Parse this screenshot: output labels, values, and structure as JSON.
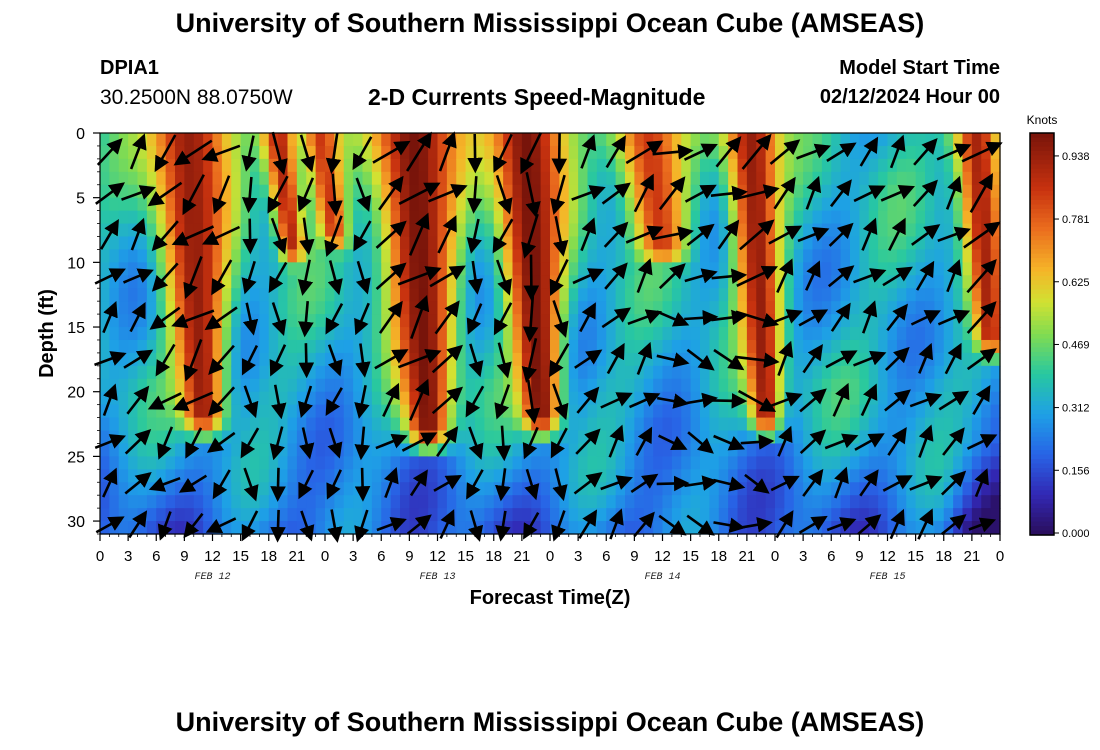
{
  "header": {
    "title": "University of Southern Mississippi Ocean Cube (AMSEAS)",
    "station_id": "DPIA1",
    "station_coords": "30.2500N  88.0750W",
    "plot_title": "2-D Currents Speed-Magnitude",
    "start_label": "Model Start Time",
    "start_value": "02/12/2024 Hour 00"
  },
  "footer": {
    "title": "University of Southern Mississippi Ocean Cube (AMSEAS)"
  },
  "chart_data": {
    "type": "heatmap",
    "title": "2-D Currents Speed-Magnitude",
    "xlabel": "Forecast Time(Z)",
    "ylabel": "Depth (ft)",
    "x_range_hours": [
      0,
      96
    ],
    "y_range_ft": [
      0,
      31
    ],
    "x_tick_labels": [
      "0",
      "3",
      "6",
      "9",
      "12",
      "15",
      "18",
      "21",
      "0",
      "3",
      "6",
      "9",
      "12",
      "15",
      "18",
      "21",
      "0",
      "3",
      "6",
      "9",
      "12",
      "15",
      "18",
      "21",
      "0",
      "3",
      "6",
      "9",
      "12",
      "15",
      "18",
      "21",
      "0"
    ],
    "y_ticks": [
      0,
      5,
      10,
      15,
      20,
      25,
      30
    ],
    "date_labels": [
      {
        "label": "FEB 12",
        "hour": 12
      },
      {
        "label": "FEB 13",
        "hour": 36
      },
      {
        "label": "FEB 14",
        "hour": 60
      },
      {
        "label": "FEB 15",
        "hour": 84
      }
    ],
    "colorbar": {
      "unit": "Knots",
      "min": 0.0,
      "max": 1.0,
      "tick_labels": [
        "0.938",
        "0.781",
        "0.625",
        "0.469",
        "0.312",
        "0.156",
        "0.000"
      ],
      "tick_values": [
        0.938,
        0.781,
        0.625,
        0.469,
        0.312,
        0.156,
        0.0
      ]
    },
    "speed_maxima": [
      {
        "center_hour": 9.5,
        "peak_knots": 0.95,
        "surface_width_h": 5.5,
        "bottom_depth_ft": 22
      },
      {
        "center_hour": 19,
        "peak_knots": 0.9,
        "surface_width_h": 2.2,
        "bottom_depth_ft": 9
      },
      {
        "center_hour": 23.5,
        "peak_knots": 0.85,
        "surface_width_h": 2.4,
        "bottom_depth_ft": 8
      },
      {
        "center_hour": 33.5,
        "peak_knots": 1.0,
        "surface_width_h": 6.0,
        "bottom_depth_ft": 23
      },
      {
        "center_hour": 45.5,
        "peak_knots": 1.0,
        "surface_width_h": 5.0,
        "bottom_depth_ft": 22
      },
      {
        "center_hour": 58.5,
        "peak_knots": 0.85,
        "surface_width_h": 5.0,
        "bottom_depth_ft": 9
      },
      {
        "center_hour": 69.5,
        "peak_knots": 0.95,
        "surface_width_h": 3.5,
        "bottom_depth_ft": 22
      },
      {
        "center_hour": 93.5,
        "peak_knots": 0.92,
        "surface_width_h": 3.0,
        "bottom_depth_ft": 16
      }
    ],
    "vector_direction_phases": [
      {
        "hours": [
          0,
          7
        ],
        "direction": "northeast / up-right"
      },
      {
        "hours": [
          7,
          16
        ],
        "direction": "southwest / down-left"
      },
      {
        "hours": [
          16,
          31
        ],
        "direction": "south to southeast"
      },
      {
        "hours": [
          31,
          40
        ],
        "direction": "northeast / up-right"
      },
      {
        "hours": [
          40,
          50
        ],
        "direction": "south to southeast"
      },
      {
        "hours": [
          50,
          60
        ],
        "direction": "northeast / up-right"
      },
      {
        "hours": [
          60,
          73
        ],
        "direction": "northeast, southeast below"
      },
      {
        "hours": [
          73,
          96
        ],
        "direction": "northeast / up-right"
      }
    ]
  }
}
